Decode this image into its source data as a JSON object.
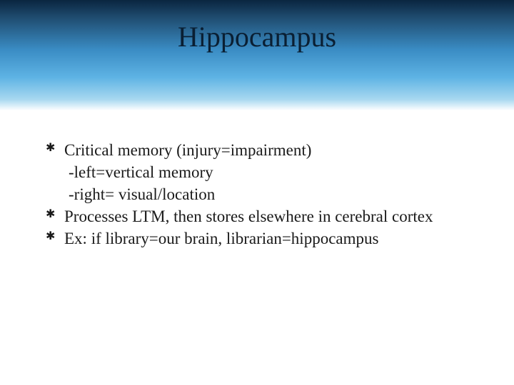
{
  "slide": {
    "title": "Hippocampus",
    "header_gradient": [
      "#0a2540",
      "#1e4a6d",
      "#3a8cc4",
      "#5eb3e4",
      "#a8d8f0",
      "#ffffff"
    ],
    "title_color": "#0a1f33",
    "title_fontsize": 40,
    "body_fontsize": 23,
    "bullets": [
      {
        "text": "Critical memory (injury=impairment)",
        "sublines": [
          "-left=vertical memory",
          "-right= visual/location"
        ]
      },
      {
        "text": "Processes LTM, then stores elsewhere in cerebral cortex",
        "sublines": []
      },
      {
        "text": "Ex: if library=our brain, librarian=hippocampus",
        "sublines": []
      }
    ]
  }
}
